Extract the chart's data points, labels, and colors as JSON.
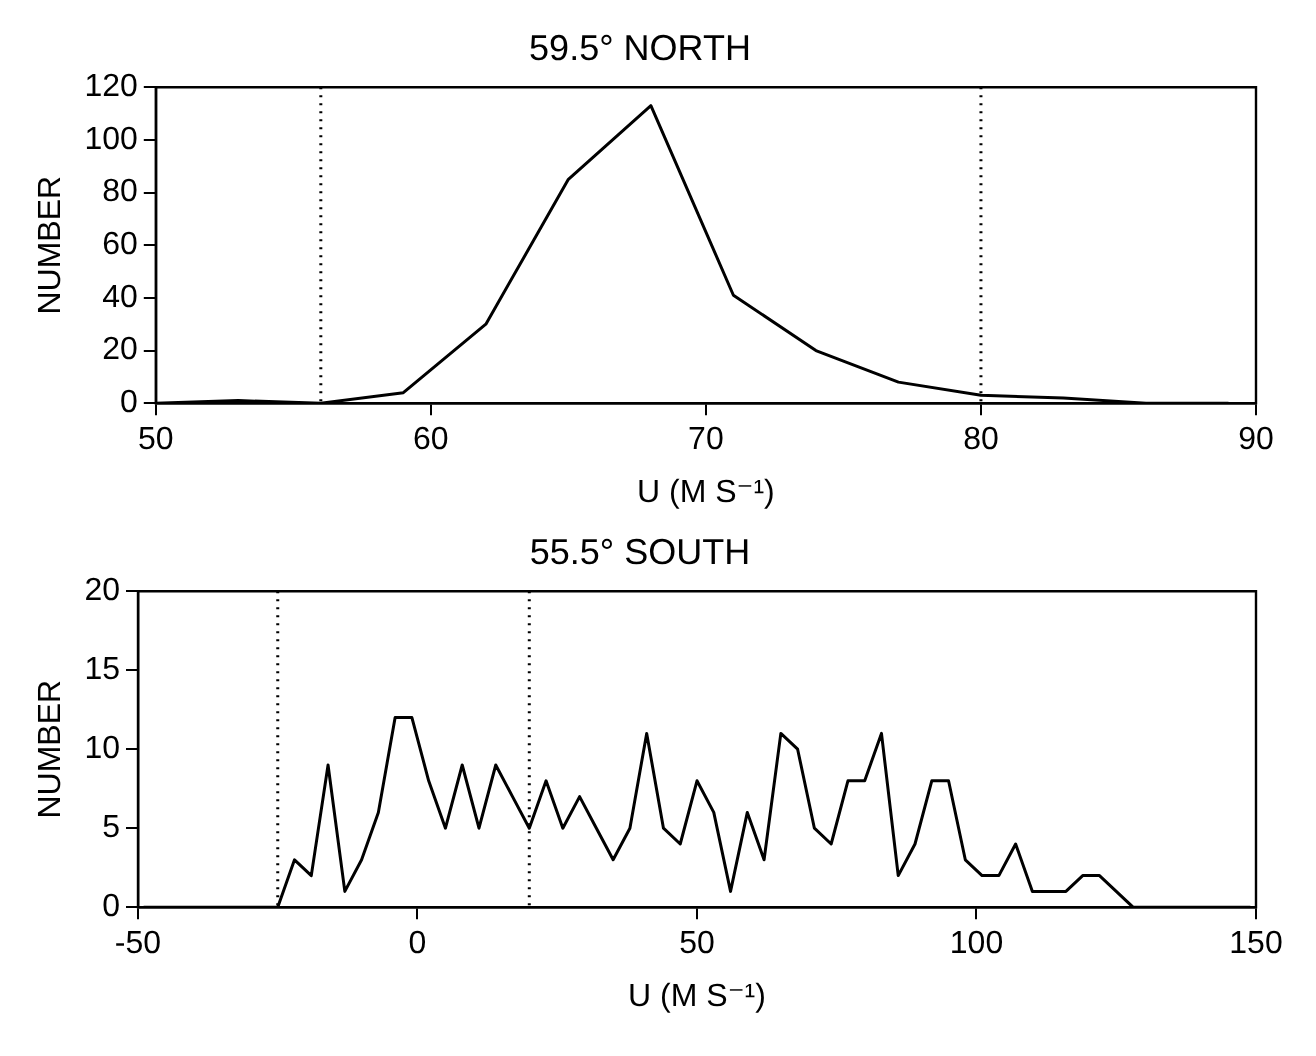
{
  "chart_data": [
    {
      "type": "line",
      "title": "59.5° NORTH",
      "xlabel": "U (M S⁻¹)",
      "ylabel": "NUMBER",
      "x": [
        50,
        53,
        56,
        59,
        62,
        65,
        68,
        71,
        74,
        77,
        80,
        83,
        86,
        89
      ],
      "series": [
        {
          "color": "#000000",
          "values": [
            0,
            1,
            0,
            4,
            30,
            85,
            113,
            41,
            20,
            8,
            3,
            2,
            0,
            0
          ]
        }
      ],
      "xlim": [
        50,
        90
      ],
      "xticks": [
        50,
        60,
        70,
        80,
        90
      ],
      "ylim": [
        0,
        120
      ],
      "yticks": [
        0,
        20,
        40,
        60,
        80,
        100,
        120
      ],
      "ref_lines": [
        {
          "axis": "x",
          "value": 56,
          "line_style": "dotted",
          "color": "#000000"
        },
        {
          "axis": "x",
          "value": 80,
          "line_style": "dotted",
          "color": "#000000"
        }
      ]
    },
    {
      "type": "line",
      "title": "55.5° SOUTH",
      "xlabel": "U (M S⁻¹)",
      "ylabel": "NUMBER",
      "x": [
        -49,
        -25,
        -22,
        -19,
        -16,
        -13,
        -10,
        -7,
        -4,
        -1,
        2,
        5,
        8,
        11,
        14,
        17,
        20,
        23,
        26,
        29,
        32,
        35,
        38,
        41,
        44,
        47,
        50,
        53,
        56,
        59,
        62,
        65,
        68,
        71,
        74,
        77,
        80,
        83,
        86,
        89,
        92,
        95,
        98,
        101,
        104,
        107,
        110,
        113,
        116,
        119,
        122,
        125,
        128,
        149
      ],
      "series": [
        {
          "color": "#000000",
          "values": [
            0,
            0,
            3,
            2,
            9,
            1,
            3,
            6,
            12,
            12,
            8,
            5,
            9,
            5,
            9,
            7,
            5,
            8,
            5,
            7,
            5,
            3,
            5,
            11,
            5,
            4,
            8,
            6,
            1,
            6,
            3,
            11,
            10,
            5,
            4,
            8,
            8,
            11,
            2,
            4,
            8,
            8,
            3,
            2,
            2,
            4,
            1,
            1,
            1,
            2,
            2,
            1,
            0,
            0
          ]
        }
      ],
      "xlim": [
        -50,
        150
      ],
      "xticks": [
        -50,
        0,
        50,
        100,
        150
      ],
      "ylim": [
        0,
        20
      ],
      "yticks": [
        0,
        5,
        10,
        15,
        20
      ],
      "ref_lines": [
        {
          "axis": "x",
          "value": -25,
          "line_style": "dotted",
          "color": "#000000"
        },
        {
          "axis": "x",
          "value": 20,
          "line_style": "dotted",
          "color": "#000000"
        }
      ]
    }
  ]
}
